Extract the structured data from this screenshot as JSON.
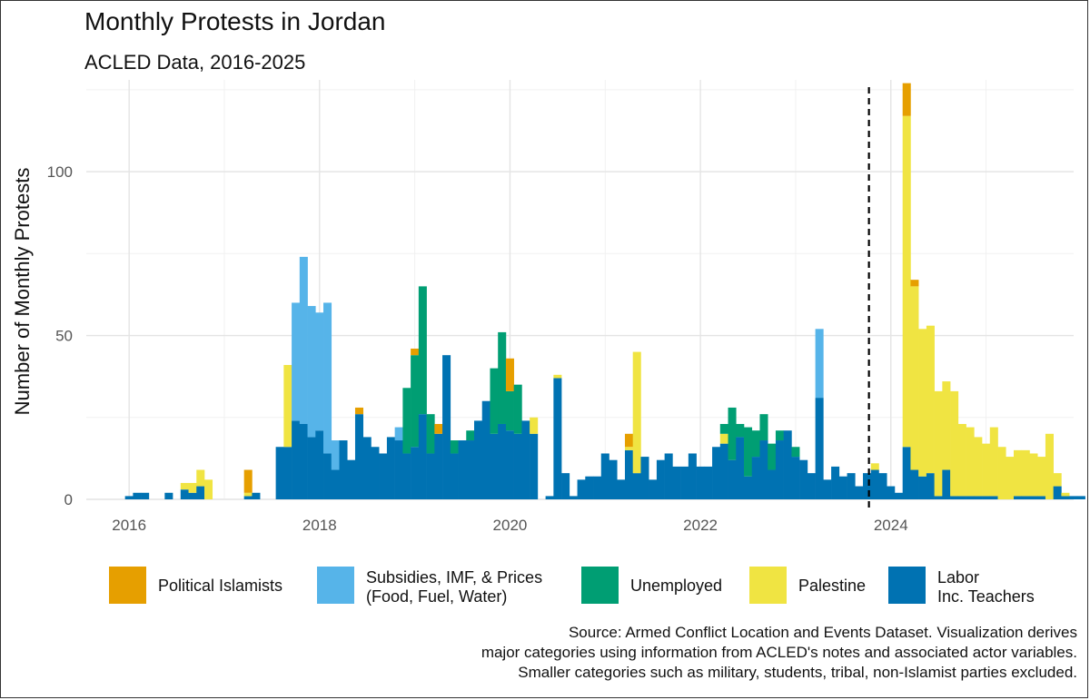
{
  "chart_data": {
    "type": "bar",
    "stacked": true,
    "title": "Monthly Protests in Jordan",
    "subtitle": "ACLED Data, 2016-2025",
    "ylabel": "Number of Monthly Protests",
    "xlabel": "",
    "x_start": 2016.0,
    "ylim": [
      0,
      128
    ],
    "xlim": [
      2015.55,
      2025.92
    ],
    "grid": true,
    "yticks": [
      "0",
      "50",
      "100"
    ],
    "xticks": [
      "2016",
      "2018",
      "2020",
      "2022",
      "2024"
    ],
    "vline": {
      "x": 2023.77,
      "style": "dashed",
      "color": "#000000"
    },
    "legend_position": "bottom",
    "series": [
      {
        "name": "Labor Inc. Teachers",
        "color": "#0072B2",
        "values": [
          1,
          2,
          2,
          0,
          0,
          2,
          0,
          3,
          2,
          4,
          0,
          0,
          0,
          0,
          0,
          1,
          2,
          0,
          0,
          16,
          16,
          24,
          23,
          19,
          21,
          14,
          9,
          18,
          12,
          26,
          19,
          16,
          14,
          19,
          18,
          14,
          16,
          26,
          14,
          20,
          44,
          14,
          18,
          18,
          24,
          30,
          20,
          23,
          21,
          20,
          24,
          20,
          0,
          1,
          37,
          8,
          1,
          6,
          7,
          7,
          14,
          12,
          6,
          15,
          8,
          13,
          6,
          12,
          14,
          10,
          10,
          14,
          10,
          10,
          16,
          17,
          12,
          19,
          7,
          13,
          18,
          9,
          18,
          21,
          13,
          12,
          8,
          31,
          6,
          10,
          7,
          8,
          4,
          8,
          9,
          8,
          4,
          2,
          16,
          9,
          7,
          8,
          1,
          9,
          1,
          1,
          1,
          1,
          1,
          1,
          0,
          0,
          1,
          1,
          1,
          1,
          0,
          4,
          1,
          1,
          1
        ]
      },
      {
        "name": "Palestine",
        "color": "#F0E442",
        "values": [
          0,
          0,
          0,
          0,
          0,
          0,
          0,
          2,
          3,
          5,
          6,
          0,
          0,
          0,
          0,
          1,
          0,
          0,
          0,
          0,
          25,
          0,
          0,
          0,
          0,
          0,
          0,
          0,
          0,
          0,
          0,
          0,
          0,
          0,
          0,
          0,
          0,
          0,
          0,
          0,
          0,
          0,
          0,
          0,
          0,
          0,
          0,
          0,
          0,
          0,
          0,
          5,
          0,
          0,
          1,
          0,
          0,
          0,
          0,
          0,
          0,
          0,
          0,
          1,
          37,
          0,
          0,
          0,
          0,
          0,
          0,
          0,
          0,
          0,
          0,
          3,
          0,
          0,
          0,
          0,
          0,
          0,
          0,
          0,
          0,
          0,
          0,
          0,
          0,
          0,
          0,
          0,
          0,
          0,
          2,
          0,
          0,
          0,
          101,
          56,
          45,
          45,
          32,
          27,
          32,
          22,
          21,
          18,
          16,
          21,
          16,
          13,
          14,
          14,
          13,
          12,
          20,
          4,
          1,
          0,
          0
        ]
      },
      {
        "name": "Unemployed",
        "color": "#009E73",
        "values": [
          0,
          0,
          0,
          0,
          0,
          0,
          0,
          0,
          0,
          0,
          0,
          0,
          0,
          0,
          0,
          0,
          0,
          0,
          0,
          0,
          0,
          0,
          0,
          0,
          0,
          0,
          0,
          0,
          0,
          0,
          0,
          0,
          0,
          0,
          0,
          20,
          28,
          39,
          12,
          0,
          0,
          4,
          0,
          3,
          0,
          0,
          20,
          28,
          12,
          15,
          0,
          0,
          0,
          0,
          0,
          0,
          0,
          0,
          0,
          0,
          0,
          0,
          0,
          0,
          0,
          0,
          0,
          0,
          0,
          0,
          0,
          0,
          0,
          0,
          0,
          3,
          16,
          4,
          15,
          8,
          8,
          8,
          3,
          0,
          3,
          0,
          0,
          0,
          0,
          0,
          0,
          0,
          0,
          0,
          0,
          0,
          0,
          0,
          0,
          0,
          0,
          0,
          0,
          0,
          0,
          0,
          0,
          0,
          0,
          0,
          0,
          0,
          0,
          0,
          0,
          0,
          0,
          0,
          0,
          0,
          0
        ]
      },
      {
        "name": "Subsidies, IMF, & Prices (Food, Fuel, Water)",
        "color": "#56B4E9",
        "values": [
          0,
          0,
          0,
          0,
          0,
          0,
          0,
          0,
          0,
          0,
          0,
          0,
          0,
          0,
          0,
          0,
          0,
          0,
          0,
          0,
          0,
          36,
          51,
          40,
          36,
          46,
          9,
          0,
          0,
          0,
          0,
          0,
          0,
          0,
          4,
          0,
          0,
          0,
          0,
          0,
          0,
          0,
          0,
          0,
          0,
          0,
          0,
          0,
          0,
          0,
          0,
          0,
          0,
          0,
          0,
          0,
          0,
          0,
          0,
          0,
          0,
          0,
          0,
          0,
          0,
          0,
          0,
          0,
          0,
          0,
          0,
          0,
          0,
          0,
          0,
          0,
          0,
          0,
          0,
          0,
          0,
          0,
          0,
          0,
          0,
          0,
          0,
          21,
          0,
          0,
          0,
          0,
          0,
          0,
          0,
          0,
          0,
          0,
          0,
          0,
          0,
          0,
          0,
          0,
          0,
          0,
          0,
          0,
          0,
          0,
          0,
          0,
          0,
          0,
          0,
          0,
          0,
          0,
          0,
          0,
          0
        ]
      },
      {
        "name": "Political Islamists",
        "color": "#E69F00",
        "values": [
          0,
          0,
          0,
          0,
          0,
          0,
          0,
          0,
          0,
          0,
          0,
          0,
          0,
          0,
          0,
          7,
          0,
          0,
          0,
          0,
          0,
          0,
          0,
          0,
          0,
          0,
          0,
          0,
          0,
          2,
          0,
          0,
          0,
          0,
          0,
          0,
          2,
          0,
          0,
          3,
          0,
          0,
          0,
          0,
          0,
          0,
          0,
          0,
          10,
          0,
          0,
          0,
          0,
          0,
          0,
          0,
          0,
          0,
          0,
          0,
          0,
          0,
          0,
          4,
          0,
          0,
          0,
          0,
          0,
          0,
          0,
          0,
          0,
          0,
          0,
          0,
          0,
          0,
          0,
          0,
          0,
          0,
          0,
          0,
          0,
          0,
          0,
          0,
          0,
          0,
          0,
          0,
          0,
          0,
          0,
          0,
          0,
          0,
          10,
          2,
          0,
          0,
          0,
          0,
          0,
          0,
          0,
          0,
          0,
          0,
          0,
          0,
          0,
          0,
          0,
          0,
          0,
          0,
          0,
          0,
          0
        ]
      }
    ]
  },
  "legend": [
    {
      "label": "Political Islamists",
      "color": "#E69F00"
    },
    {
      "label": "Subsidies, IMF, & Prices",
      "label2": "(Food, Fuel, Water)",
      "color": "#56B4E9"
    },
    {
      "label": "Unemployed",
      "color": "#009E73"
    },
    {
      "label": "Palestine",
      "color": "#F0E442"
    },
    {
      "label": "Labor",
      "label2": "Inc. Teachers",
      "color": "#0072B2"
    }
  ],
  "source": {
    "line1": "Source: Armed Conflict Location and Events Dataset. Visualization derives",
    "line2": "major categories using information from ACLED's notes and associated actor variables.",
    "line3": "Smaller categories such as military, students, tribal, non-Islamist parties excluded."
  }
}
